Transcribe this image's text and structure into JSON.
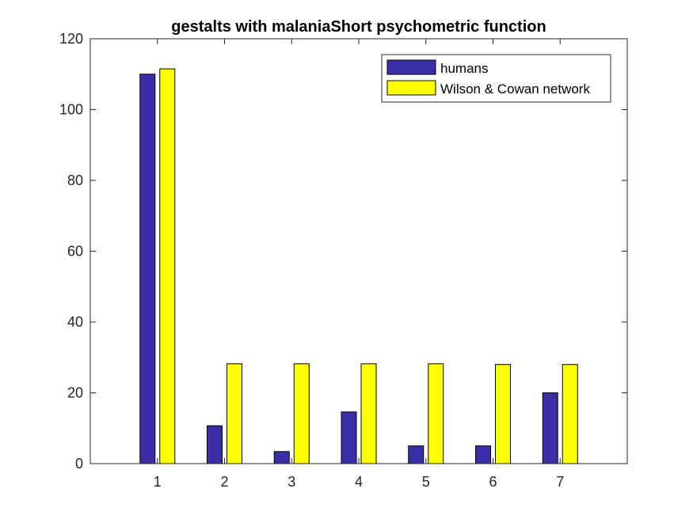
{
  "chart_data": {
    "type": "bar",
    "title": "gestalts with malaniaShort psychometric function",
    "xlabel": "",
    "ylabel": "",
    "categories": [
      "1",
      "2",
      "3",
      "4",
      "5",
      "6",
      "7"
    ],
    "xlim": [
      0,
      8
    ],
    "ylim": [
      0,
      120
    ],
    "yticks": [
      "0",
      "20",
      "40",
      "60",
      "80",
      "100",
      "120"
    ],
    "grid": false,
    "legend_position": "top-right",
    "series": [
      {
        "name": "humans",
        "color": "#3a2fa6",
        "values": [
          110,
          10.7,
          3.4,
          14.6,
          5.0,
          5.0,
          20.0
        ]
      },
      {
        "name": "Wilson & Cowan network",
        "color": "#ffff00",
        "values": [
          111.5,
          28.2,
          28.2,
          28.2,
          28.2,
          28.0,
          28.0
        ]
      }
    ]
  }
}
